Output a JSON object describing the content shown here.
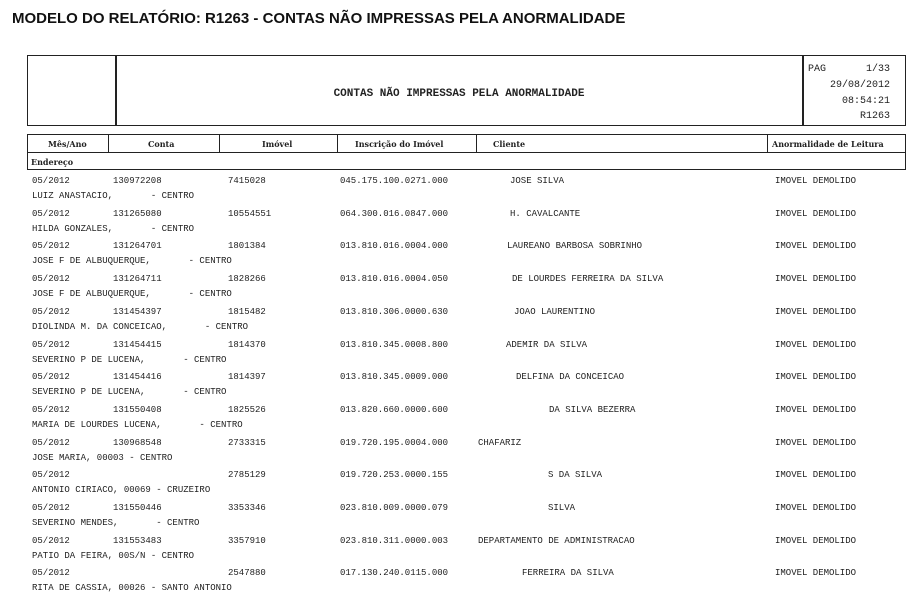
{
  "page_title": "MODELO DO RELATÓRIO: R1263 -  CONTAS NÃO IMPRESSAS PELA ANORMALIDADE",
  "report": {
    "title": "CONTAS NÃO IMPRESSAS PELA ANORMALIDADE",
    "pag_label": "PAG",
    "pag_value": "1/33",
    "date": "29/08/2012",
    "time": "08:54:21",
    "code": "R1263"
  },
  "columns": {
    "mes_ano": "Mês/Ano",
    "conta": "Conta",
    "imovel": "Imóvel",
    "inscricao": "Inscrição do Imóvel",
    "cliente": "Cliente",
    "anormalidade": "Anormalidade de Leitura",
    "endereco": "Endereço"
  },
  "rows": [
    {
      "mes": "05/2012",
      "conta": "130972208",
      "imovel": "7415028",
      "inscricao": "045.175.100.0271.000",
      "cliente": "JOSE SILVA",
      "anormalidade": "IMOVEL DEMOLIDO",
      "endereco": "LUIZ ANASTACIO,       - CENTRO"
    },
    {
      "mes": "05/2012",
      "conta": "131265080",
      "imovel": "10554551",
      "inscricao": "064.300.016.0847.000",
      "cliente": "H. CAVALCANTE",
      "anormalidade": "IMOVEL DEMOLIDO",
      "endereco": "HILDA GONZALES,       - CENTRO"
    },
    {
      "mes": "05/2012",
      "conta": "131264701",
      "imovel": "1801384",
      "inscricao": "013.810.016.0004.000",
      "cliente": "LAUREANO BARBOSA SOBRINHO",
      "anormalidade": "IMOVEL DEMOLIDO",
      "endereco": "JOSE F DE ALBUQUERQUE,       - CENTRO"
    },
    {
      "mes": "05/2012",
      "conta": "131264711",
      "imovel": "1828266",
      "inscricao": "013.810.016.0004.050",
      "cliente": "DE LOURDES FERREIRA DA SILVA",
      "anormalidade": "IMOVEL DEMOLIDO",
      "endereco": "JOSE F DE ALBUQUERQUE,       - CENTRO"
    },
    {
      "mes": "05/2012",
      "conta": "131454397",
      "imovel": "1815482",
      "inscricao": "013.810.306.0000.630",
      "cliente": "JOAO LAURENTINO",
      "anormalidade": "IMOVEL DEMOLIDO",
      "endereco": "DIOLINDA M. DA CONCEICAO,       - CENTRO"
    },
    {
      "mes": "05/2012",
      "conta": "131454415",
      "imovel": "1814370",
      "inscricao": "013.810.345.0008.800",
      "cliente": "ADEMIR DA SILVA",
      "anormalidade": "IMOVEL DEMOLIDO",
      "endereco": "SEVERINO P DE LUCENA,       - CENTRO"
    },
    {
      "mes": "05/2012",
      "conta": "131454416",
      "imovel": "1814397",
      "inscricao": "013.810.345.0009.000",
      "cliente": "DELFINA DA CONCEICAO",
      "anormalidade": "IMOVEL DEMOLIDO",
      "endereco": "SEVERINO P DE LUCENA,       - CENTRO"
    },
    {
      "mes": "05/2012",
      "conta": "131550408",
      "imovel": "1825526",
      "inscricao": "013.820.660.0000.600",
      "cliente": "DA SILVA BEZERRA",
      "anormalidade": "IMOVEL DEMOLIDO",
      "endereco": "MARIA DE LOURDES LUCENA,       - CENTRO"
    },
    {
      "mes": "05/2012",
      "conta": "130968548",
      "imovel": "2733315",
      "inscricao": "019.720.195.0004.000",
      "cliente": "CHAFARIZ",
      "anormalidade": "IMOVEL DEMOLIDO",
      "endereco": "JOSE MARIA, 00003 - CENTRO"
    },
    {
      "mes": "05/2012",
      "conta": "",
      "imovel": "2785129",
      "inscricao": "019.720.253.0000.155",
      "cliente": "S DA SILVA",
      "anormalidade": "IMOVEL DEMOLIDO",
      "endereco": "ANTONIO CIRIACO, 00069 - CRUZEIRO"
    },
    {
      "mes": "05/2012",
      "conta": "131550446",
      "imovel": "3353346",
      "inscricao": "023.810.009.0000.079",
      "cliente": "SILVA",
      "anormalidade": "IMOVEL DEMOLIDO",
      "endereco": "SEVERINO MENDES,       - CENTRO"
    },
    {
      "mes": "05/2012",
      "conta": "131553483",
      "imovel": "3357910",
      "inscricao": "023.810.311.0000.003",
      "cliente": "DEPARTAMENTO DE ADMINISTRACAO",
      "anormalidade": "IMOVEL DEMOLIDO",
      "endereco": "PATIO DA FEIRA, 00S/N - CENTRO"
    },
    {
      "mes": "05/2012",
      "conta": "",
      "imovel": "2547880",
      "inscricao": "017.130.240.0115.000",
      "cliente": "FERREIRA DA SILVA",
      "anormalidade": "IMOVEL DEMOLIDO",
      "endereco": "RITA DE CASSIA, 00026 - SANTO ANTONIO"
    }
  ]
}
